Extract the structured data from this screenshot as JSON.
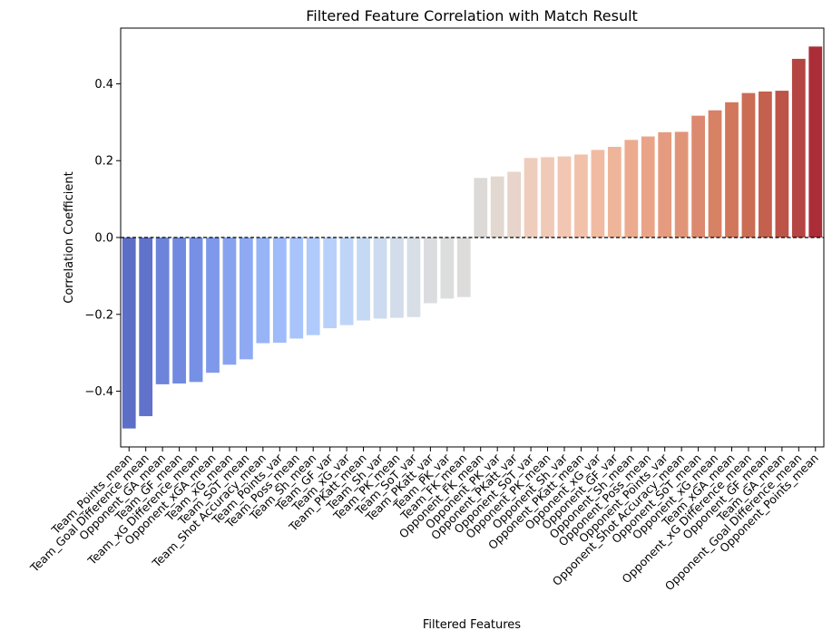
{
  "chart_data": {
    "type": "bar",
    "title": "Filtered Feature Correlation with Match Result",
    "xlabel": "Filtered Features",
    "ylabel": "Correlation Coefficient",
    "ylim": [
      -0.545,
      0.545
    ],
    "yticks": [
      -0.4,
      -0.2,
      0.0,
      0.2,
      0.4
    ],
    "ytick_labels": [
      "−0.4",
      "−0.2",
      "0.0",
      "0.2",
      "0.4"
    ],
    "grid": false,
    "legend": "none",
    "colormap": "coolwarm",
    "reference_line": {
      "y": 0,
      "style": "dashed",
      "color": "#000000"
    },
    "categories": [
      "Team_Points_mean",
      "Team_Goal Difference_mean",
      "Opponent_GA_mean",
      "Team_GF_mean",
      "Team_xG Difference_mean",
      "Opponent_xGA_mean",
      "Team_xG_mean",
      "Team_SoT_mean",
      "Team_Shot Accuracy_mean",
      "Team_Points_var",
      "Team_Poss_mean",
      "Team_Sh_mean",
      "Team_GF_var",
      "Team_xG_var",
      "Team_PKatt_mean",
      "Team_Sh_var",
      "Team_PK_mean",
      "Team_SoT_var",
      "Team_PKatt_var",
      "Team_PK_var",
      "Team_FK_mean",
      "Opponent_FK_mean",
      "Opponent_PK_var",
      "Opponent_PKatt_var",
      "Opponent_SoT_var",
      "Opponent_PK_mean",
      "Opponent_Sh_var",
      "Opponent_PKatt_mean",
      "Opponent_xG_var",
      "Opponent_GF_var",
      "Opponent_Sh_mean",
      "Opponent_Poss_mean",
      "Opponent_Points_var",
      "Opponent_Shot Accuracy_mean",
      "Opponent_SoT_mean",
      "Opponent_xG_mean",
      "Team_xGA_mean",
      "Opponent_xG Difference_mean",
      "Opponent_GF_mean",
      "Team_GA_mean",
      "Opponent_Goal Difference_mean",
      "Opponent_Points_mean"
    ],
    "values": [
      -0.497,
      -0.465,
      -0.382,
      -0.38,
      -0.376,
      -0.352,
      -0.331,
      -0.317,
      -0.275,
      -0.274,
      -0.263,
      -0.254,
      -0.236,
      -0.228,
      -0.216,
      -0.211,
      -0.209,
      -0.207,
      -0.171,
      -0.159,
      -0.155,
      0.155,
      0.159,
      0.171,
      0.207,
      0.209,
      0.211,
      0.216,
      0.228,
      0.236,
      0.254,
      0.263,
      0.274,
      0.275,
      0.317,
      0.331,
      0.352,
      0.376,
      0.38,
      0.382,
      0.465,
      0.497
    ],
    "colors": [
      "#5d6ec7",
      "#6172cb",
      "#6c84d9",
      "#7189df",
      "#7690e5",
      "#7e99eb",
      "#87a3f0",
      "#8faaf3",
      "#97b4f7",
      "#a0bbf9",
      "#a8c4fb",
      "#b0cbfb",
      "#b8d0fa",
      "#bfd5f8",
      "#c6d9f4",
      "#ccdbef",
      "#d2dcea",
      "#d7dee6",
      "#dbdcdf",
      "#dcdddd",
      "#dedcdb",
      "#dcd9d6",
      "#e3d8d0",
      "#e8d4ca",
      "#efcdbd",
      "#f0c9b7",
      "#f2c6b2",
      "#f2c1aa",
      "#f1bba2",
      "#efb59b",
      "#ecab8f",
      "#e9a488",
      "#e59b7f",
      "#e19578",
      "#dc8a6f",
      "#d78165",
      "#d2775c",
      "#cb6c55",
      "#c4604e",
      "#bd5448",
      "#b54543",
      "#aa2d38"
    ]
  }
}
